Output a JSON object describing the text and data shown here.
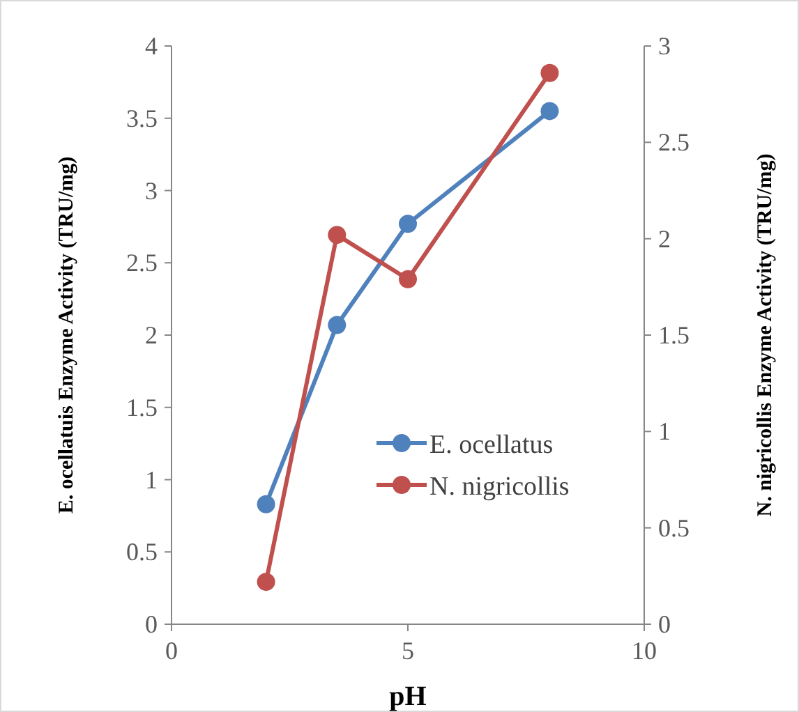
{
  "chart_data": {
    "type": "line",
    "xlabel": "pH",
    "ylabel": "E. ocellatuis Enzyme Activity (TRU/mg)",
    "y2label": "N. nigricollis Enzyme Activity (TRU/mg)",
    "xlim": [
      0,
      10
    ],
    "xticks": [
      0,
      5,
      10
    ],
    "ylim": [
      0,
      4
    ],
    "yticks": [
      0,
      0.5,
      1,
      1.5,
      2,
      2.5,
      3,
      3.5,
      4
    ],
    "y2lim": [
      0,
      3
    ],
    "y2ticks": [
      0,
      0.5,
      1,
      1.5,
      2,
      2.5,
      3
    ],
    "x": [
      2,
      3.5,
      5,
      8
    ],
    "grid": false,
    "legend": "right",
    "marker": "circle",
    "line_style": "solid",
    "series": [
      {
        "name": "E. ocellatus",
        "color": "#4f81bd",
        "values": [
          0.83,
          2.07,
          2.77,
          3.55
        ]
      },
      {
        "name": "N. nigricollis",
        "color": "#c0504d",
        "values": [
          0.22,
          2.02,
          1.79,
          2.86
        ],
        "axis": "y2"
      }
    ]
  }
}
